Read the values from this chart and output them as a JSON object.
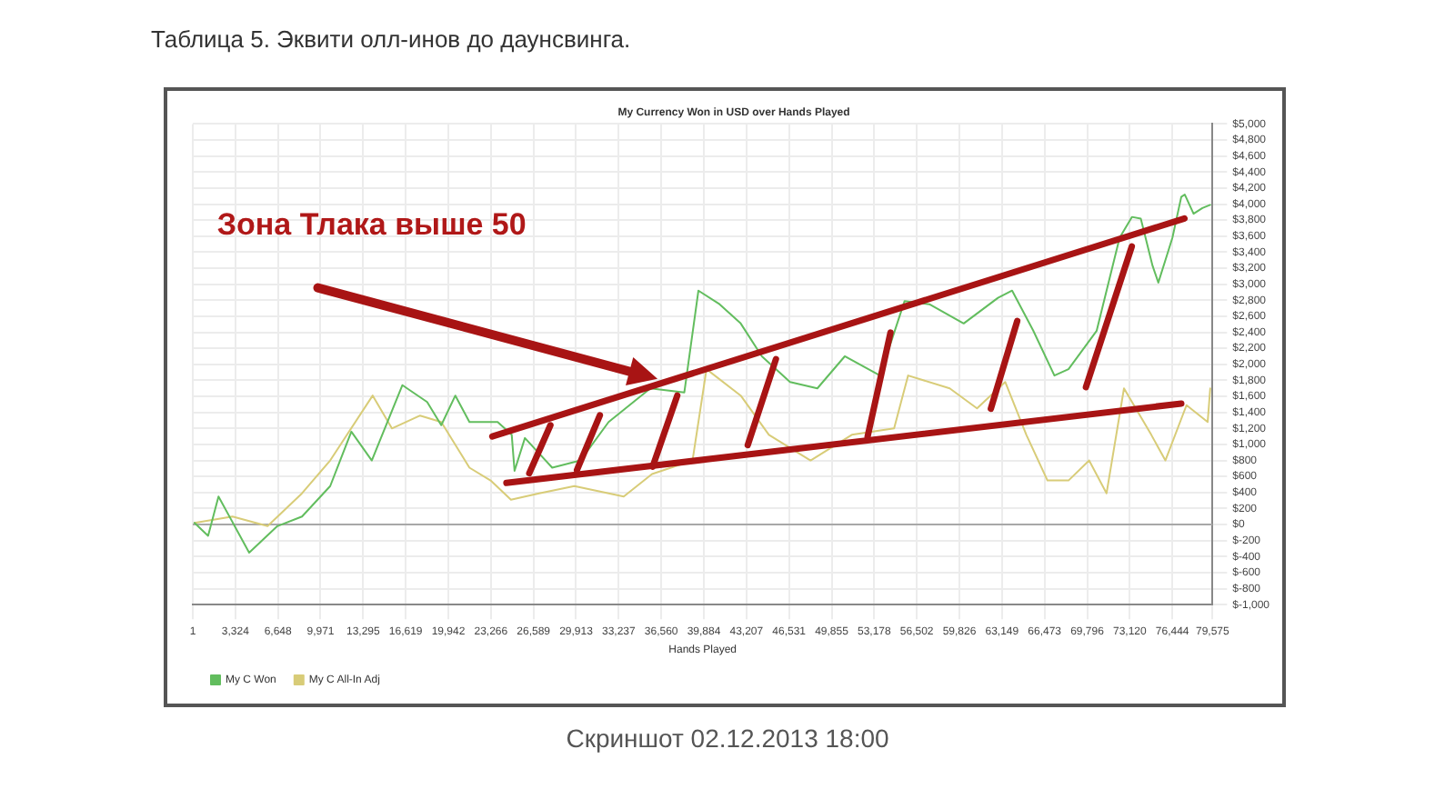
{
  "chart_data": {
    "type": "line",
    "title": "My Currency Won in USD over Hands Played",
    "xlabel": "Hands Played",
    "annotations": [
      "Таблица 5. Эквити олл-инов до даунсвинга.",
      "Зона Тлака выше 50",
      "Скриншот 02.12.2013 18:00"
    ],
    "xlim": [
      1,
      79575
    ],
    "xticks": [
      1,
      {
        "value": 3324,
        "label": "3,324"
      },
      {
        "value": 6648,
        "label": "6,648"
      },
      {
        "value": 9971,
        "label": "9,971"
      },
      {
        "value": 13295,
        "label": "13,295"
      },
      {
        "value": 16619,
        "label": "16,619"
      },
      {
        "value": 19942,
        "label": "19,942"
      },
      {
        "value": 23266,
        "label": "23,266"
      },
      {
        "value": 26589,
        "label": "26,589"
      },
      {
        "value": 29913,
        "label": "29,913"
      },
      {
        "value": 33237,
        "label": "33,237"
      },
      {
        "value": 36560,
        "label": "36,560"
      },
      {
        "value": 39884,
        "label": "39,884"
      },
      {
        "value": 43207,
        "label": "43,207"
      },
      {
        "value": 46531,
        "label": "46,531"
      },
      {
        "value": 49855,
        "label": "49,855"
      },
      {
        "value": 53178,
        "label": "53,178"
      },
      {
        "value": 56502,
        "label": "56,502"
      },
      {
        "value": 59826,
        "label": "59,826"
      },
      {
        "value": 63149,
        "label": "63,149"
      },
      {
        "value": 66473,
        "label": "66,473"
      },
      {
        "value": 69796,
        "label": "69,796"
      },
      {
        "value": 73120,
        "label": "73,120"
      },
      {
        "value": 76444,
        "label": "76,444"
      },
      {
        "value": 79575,
        "label": "79,575"
      }
    ],
    "ylim": [
      -1000,
      5000
    ],
    "yticks": [
      {
        "value": -1000,
        "label": "$-1,000"
      },
      {
        "value": -800,
        "label": "$-800"
      },
      {
        "value": -600,
        "label": "$-600"
      },
      {
        "value": -400,
        "label": "$-400"
      },
      {
        "value": -200,
        "label": "$-200"
      },
      {
        "value": 0,
        "label": "$0"
      },
      {
        "value": 200,
        "label": "$200"
      },
      {
        "value": 400,
        "label": "$400"
      },
      {
        "value": 600,
        "label": "$600"
      },
      {
        "value": 800,
        "label": "$800"
      },
      {
        "value": 1000,
        "label": "$1,000"
      },
      {
        "value": 1200,
        "label": "$1,200"
      },
      {
        "value": 1400,
        "label": "$1,400"
      },
      {
        "value": 1600,
        "label": "$1,600"
      },
      {
        "value": 1800,
        "label": "$1,800"
      },
      {
        "value": 2000,
        "label": "$2,000"
      },
      {
        "value": 2200,
        "label": "$2,200"
      },
      {
        "value": 2400,
        "label": "$2,400"
      },
      {
        "value": 2600,
        "label": "$2,600"
      },
      {
        "value": 2800,
        "label": "$2,800"
      },
      {
        "value": 3000,
        "label": "$3,000"
      },
      {
        "value": 3200,
        "label": "$3,200"
      },
      {
        "value": 3400,
        "label": "$3,400"
      },
      {
        "value": 3600,
        "label": "$3,600"
      },
      {
        "value": 3800,
        "label": "$3,800"
      },
      {
        "value": 4000,
        "label": "$4,000"
      },
      {
        "value": 4200,
        "label": "$4,200"
      },
      {
        "value": 4400,
        "label": "$4,400"
      },
      {
        "value": 4600,
        "label": "$4,600"
      },
      {
        "value": 4800,
        "label": "$4,800"
      },
      {
        "value": 5000,
        "label": "$5,000"
      }
    ],
    "grid": true,
    "legend": "bottom left",
    "marker": "none",
    "line_style": "solid",
    "ref_lines": [
      {
        "axis": "y",
        "value": 0,
        "color": "#a8a8a8"
      }
    ],
    "series": [
      {
        "type": "line",
        "color": "#a81414",
        "x": [
          23375,
          77390
        ],
        "values": [
          1100,
          3820
        ]
      },
      {
        "type": "line",
        "color": "#a81414",
        "x": [
          24475,
          77140
        ],
        "values": [
          520,
          1510
        ]
      },
      {
        "name": "My C Won",
        "color": "#62bd5e",
        "x": [
          137,
          1196,
          2008,
          4400,
          6600,
          8525,
          10725,
          12375,
          13970,
          16360,
          18290,
          19390,
          20490,
          21590,
          23790,
          24890,
          25110,
          25920,
          28050,
          30250,
          32450,
          35710,
          38360,
          39460,
          41110,
          42760,
          44410,
          46610,
          48740,
          50880,
          53630,
          55550,
          57480,
          60160,
          62840,
          63940,
          65590,
          67240,
          68340,
          70540,
          72330,
          73290,
          73980,
          74900,
          75350,
          76040,
          76450,
          77140,
          77410,
          78100,
          78790,
          79400
        ],
        "values": [
          20,
          -140,
          350,
          -350,
          -20,
          100,
          480,
          1160,
          800,
          1740,
          1530,
          1240,
          1610,
          1280,
          1280,
          1120,
          670,
          1080,
          710,
          800,
          1280,
          1700,
          1650,
          2920,
          2750,
          2510,
          2100,
          1780,
          1700,
          2100,
          1860,
          2790,
          2750,
          2510,
          2830,
          2920,
          2420,
          1860,
          1940,
          2420,
          3580,
          3840,
          3820,
          3230,
          3020,
          3370,
          3580,
          4090,
          4120,
          3880,
          3950,
          3990
        ]
      },
      {
        "name": "My C All-In Adj",
        "color": "#d8cc78",
        "x": [
          137,
          3100,
          5840,
          8525,
          10725,
          14040,
          15540,
          17740,
          19390,
          21590,
          23240,
          24830,
          27030,
          29780,
          33630,
          35840,
          39000,
          40090,
          42760,
          44960,
          48210,
          51430,
          54730,
          55820,
          59070,
          61200,
          63400,
          65050,
          66700,
          68340,
          69950,
          71310,
          72670,
          74800,
          75900,
          77550,
          79200,
          79400
        ],
        "values": [
          20,
          100,
          -20,
          390,
          800,
          1610,
          1200,
          1360,
          1280,
          710,
          550,
          310,
          390,
          480,
          350,
          630,
          800,
          1940,
          1610,
          1120,
          800,
          1120,
          1200,
          1860,
          1700,
          1450,
          1780,
          1120,
          550,
          550,
          800,
          390,
          1700,
          1120,
          800,
          1490,
          1280,
          1700
        ]
      }
    ]
  }
}
